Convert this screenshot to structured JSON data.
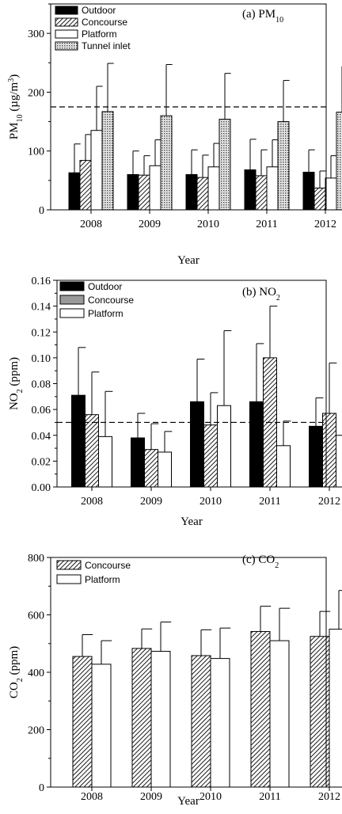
{
  "chart_data": [
    {
      "type": "bar",
      "panel": "a",
      "title_prefix": "(a) PM",
      "title_sub": "10",
      "ylabel_parts": [
        "PM",
        "10",
        " (µg/m",
        "3",
        ")"
      ],
      "xlabel": "Year",
      "categories": [
        "2008",
        "2009",
        "2010",
        "2011",
        "2012"
      ],
      "ylim": [
        0,
        350
      ],
      "yticks": [
        0,
        100,
        200,
        300
      ],
      "ytick_labels": [
        "0",
        "100",
        "200",
        "300"
      ],
      "reference_line": 175,
      "legend_position": "top-left",
      "series": [
        {
          "name": "Outdoor",
          "style": "solid",
          "values": [
            63,
            60,
            60,
            68,
            64
          ],
          "errors": [
            49,
            40,
            42,
            52,
            38
          ]
        },
        {
          "name": "Concourse",
          "style": "diagonal",
          "values": [
            84,
            59,
            55,
            58,
            37
          ],
          "errors": [
            44,
            33,
            38,
            44,
            29
          ]
        },
        {
          "name": "Platform",
          "style": "white",
          "values": [
            135,
            75,
            73,
            73,
            54
          ],
          "errors": [
            75,
            44,
            40,
            46,
            38
          ]
        },
        {
          "name": "Tunnel inlet",
          "style": "dotted",
          "values": [
            167,
            160,
            154,
            150,
            166
          ],
          "errors": [
            82,
            87,
            78,
            70,
            78
          ]
        }
      ]
    },
    {
      "type": "bar",
      "panel": "b",
      "title_prefix": "(b) NO",
      "title_sub": "2",
      "ylabel_parts": [
        "NO",
        "2",
        " (ppm)",
        "",
        ""
      ],
      "xlabel": "Year",
      "categories": [
        "2008",
        "2009",
        "2010",
        "2011",
        "2012"
      ],
      "ylim": [
        0,
        0.16
      ],
      "yticks": [
        0,
        0.02,
        0.04,
        0.06,
        0.08,
        0.1,
        0.12,
        0.14,
        0.16
      ],
      "ytick_labels": [
        "0.00",
        "0.02",
        "0.04",
        "0.06",
        "0.08",
        "0.10",
        "0.12",
        "0.14",
        "0.16"
      ],
      "reference_line": 0.05,
      "legend_position": "top-left",
      "series": [
        {
          "name": "Outdoor",
          "style": "solid",
          "values": [
            0.071,
            0.038,
            0.066,
            0.066,
            0.047
          ],
          "errors": [
            0.037,
            0.019,
            0.033,
            0.045,
            0.022
          ]
        },
        {
          "name": "Concourse",
          "style": "diagonal",
          "values": [
            0.056,
            0.029,
            0.048,
            0.1,
            0.057
          ],
          "errors": [
            0.033,
            0.02,
            0.025,
            0.04,
            0.039
          ]
        },
        {
          "name": "Platform",
          "style": "white",
          "values": [
            0.039,
            0.027,
            0.063,
            0.032,
            0.04
          ],
          "errors": [
            0.035,
            0.016,
            0.058,
            0.019,
            0.017
          ]
        }
      ],
      "legend_styles": [
        "solid",
        "gray",
        "white"
      ]
    },
    {
      "type": "bar",
      "panel": "c",
      "title_prefix": "(c) CO",
      "title_sub": "2",
      "ylabel_parts": [
        "CO",
        "2",
        " (ppm)",
        "",
        ""
      ],
      "xlabel": "Year",
      "categories": [
        "2008",
        "2009",
        "2010",
        "2011",
        "2012"
      ],
      "ylim": [
        0,
        800
      ],
      "yticks": [
        0,
        200,
        400,
        600,
        800
      ],
      "ytick_labels": [
        "0",
        "200",
        "400",
        "600",
        "800"
      ],
      "reference_line": null,
      "legend_position": "top-left",
      "series": [
        {
          "name": "Concourse",
          "style": "diagonal",
          "values": [
            455,
            483,
            458,
            542,
            525
          ],
          "errors": [
            76,
            68,
            90,
            88,
            87
          ]
        },
        {
          "name": "Platform",
          "style": "white",
          "values": [
            428,
            473,
            448,
            510,
            550
          ],
          "errors": [
            82,
            102,
            106,
            113,
            135
          ]
        }
      ]
    }
  ]
}
